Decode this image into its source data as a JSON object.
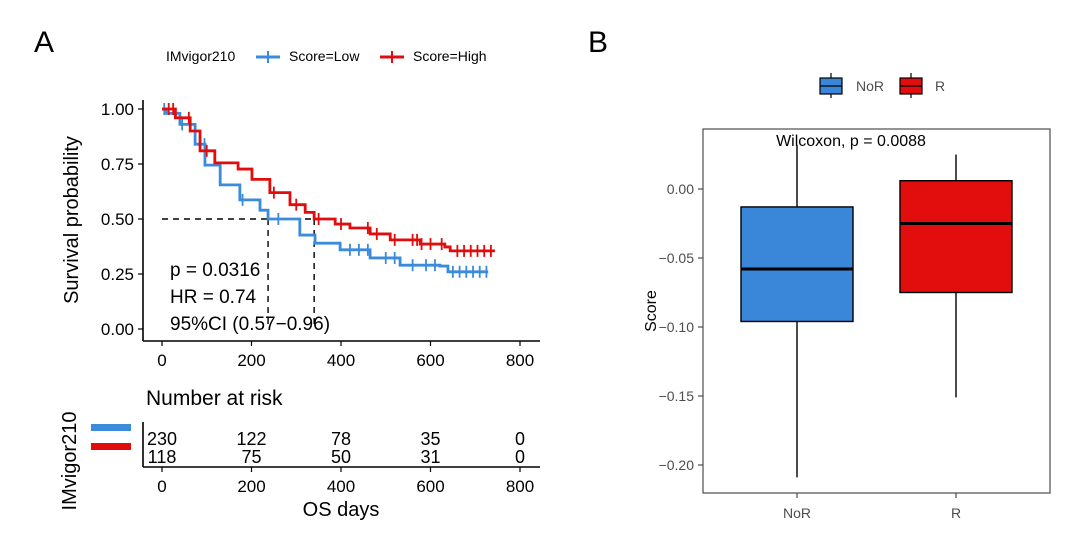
{
  "panels": {
    "a_label": "A",
    "b_label": "B"
  },
  "colors": {
    "low": "#3b8bdb",
    "high": "#e10c0c",
    "nor": "#3a87d9",
    "r": "#e20e0e"
  },
  "chart_data": [
    {
      "type": "line",
      "subtype": "kaplan-meier",
      "title": "",
      "legend": {
        "title": "IMvigor210",
        "entries": [
          "Score=Low",
          "Score=High"
        ],
        "placement": "top"
      },
      "xlabel": "OS days",
      "ylabel": "Survival probability",
      "xlim": [
        0,
        800
      ],
      "ylim": [
        0,
        1
      ],
      "xticks": [
        "0",
        "200",
        "400",
        "600",
        "800"
      ],
      "xtick_values": [
        0,
        200,
        400,
        600,
        800
      ],
      "yticks": [
        "0.00",
        "0.25",
        "0.50",
        "0.75",
        "1.00"
      ],
      "ytick_values": [
        0,
        0.25,
        0.5,
        0.75,
        1.0
      ],
      "grid": false,
      "series": [
        {
          "name": "Score=Low",
          "points": [
            [
              0,
              1.0
            ],
            [
              10,
              0.98
            ],
            [
              40,
              0.93
            ],
            [
              74,
              0.84
            ],
            [
              96,
              0.745
            ],
            [
              130,
              0.655
            ],
            [
              174,
              0.587
            ],
            [
              219,
              0.54
            ],
            [
              237,
              0.5
            ],
            [
              308,
              0.427
            ],
            [
              342,
              0.39
            ],
            [
              398,
              0.36
            ],
            [
              465,
              0.323
            ],
            [
              532,
              0.29
            ],
            [
              621,
              0.286
            ],
            [
              639,
              0.26
            ],
            [
              729,
              0.26
            ]
          ],
          "censor_days": [
            5,
            45,
            95,
            180,
            260,
            420,
            440,
            460,
            500,
            520,
            560,
            590,
            610,
            650,
            665,
            680,
            695,
            710,
            725
          ]
        },
        {
          "name": "Score=High",
          "points": [
            [
              0,
              1.0
            ],
            [
              7,
              1.0
            ],
            [
              30,
              0.96
            ],
            [
              63,
              0.9
            ],
            [
              85,
              0.81
            ],
            [
              118,
              0.755
            ],
            [
              170,
              0.727
            ],
            [
              201,
              0.68
            ],
            [
              241,
              0.62
            ],
            [
              286,
              0.565
            ],
            [
              320,
              0.53
            ],
            [
              340,
              0.5
            ],
            [
              387,
              0.477
            ],
            [
              420,
              0.459
            ],
            [
              465,
              0.432
            ],
            [
              510,
              0.405
            ],
            [
              577,
              0.386
            ],
            [
              632,
              0.373
            ],
            [
              644,
              0.355
            ],
            [
              744,
              0.355
            ]
          ],
          "censor_days": [
            15,
            25,
            60,
            100,
            250,
            300,
            350,
            400,
            460,
            480,
            520,
            560,
            570,
            580,
            600,
            625,
            660,
            675,
            690,
            705,
            720,
            735
          ]
        }
      ],
      "median_lines": {
        "y": 0.5,
        "x_values": [
          237,
          340
        ]
      },
      "annotations": [
        "p = 0.0316",
        "HR = 0.74",
        "95%CI (0.57−0.96)"
      ],
      "risk_table": {
        "title": "Number at risk",
        "strata_label": "IMvigor210",
        "xlabel": "OS days",
        "times": [
          0,
          200,
          400,
          600,
          800
        ],
        "xticks": [
          "0",
          "200",
          "400",
          "600",
          "800"
        ],
        "rows": [
          {
            "name": "Score=Low",
            "values": [
              "230",
              "122",
              "78",
              "35",
              "0"
            ]
          },
          {
            "name": "Score=High",
            "values": [
              "118",
              "75",
              "50",
              "31",
              "0"
            ]
          }
        ]
      }
    },
    {
      "type": "box",
      "title": "",
      "legend": {
        "entries": [
          "NoR",
          "R"
        ],
        "placement": "top"
      },
      "annotation": "Wilcoxon, p = 0.0088",
      "xlabel": "",
      "ylabel": "Score",
      "categories": [
        "NoR",
        "R"
      ],
      "ylim": [
        -0.22,
        0.043
      ],
      "yticks": [
        "0.00",
        "−0.05",
        "−0.10",
        "−0.15",
        "−0.20"
      ],
      "ytick_values": [
        0.0,
        -0.05,
        -0.1,
        -0.15,
        -0.2
      ],
      "grid": false,
      "boxes": [
        {
          "name": "NoR",
          "whisker_high": 0.032,
          "q3": -0.013,
          "median": -0.058,
          "q1": -0.096,
          "whisker_low": -0.209
        },
        {
          "name": "R",
          "whisker_high": 0.025,
          "q3": 0.006,
          "median": -0.025,
          "q1": -0.075,
          "whisker_low": -0.151
        }
      ]
    }
  ]
}
